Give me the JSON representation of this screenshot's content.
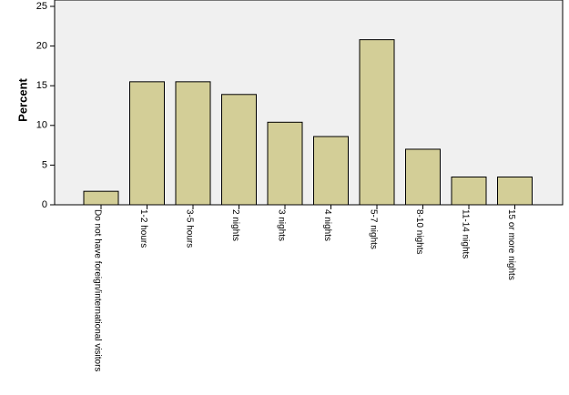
{
  "chart_data": {
    "type": "bar",
    "y_label": "Percent",
    "categories": [
      "Do not have foreign/international visitors",
      "1-2 hours",
      "3-5 hours",
      "2 nights",
      "3 nights",
      "4 nights",
      "5-7 nights",
      "8-10 nights",
      "11-14 nights",
      "15 or more nights"
    ],
    "values": [
      1.7,
      15.5,
      15.5,
      13.9,
      10.4,
      8.6,
      20.8,
      7.0,
      3.5,
      3.5
    ],
    "color": "#d3ce97",
    "ylim": [
      0,
      25
    ],
    "yticks": [
      0,
      5,
      10,
      15,
      20,
      25
    ]
  }
}
